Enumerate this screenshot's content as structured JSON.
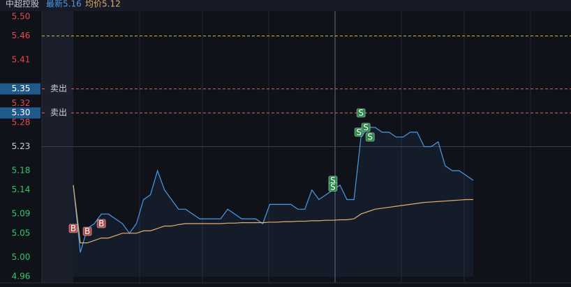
{
  "chart_data": {
    "type": "line",
    "header": {
      "name": "中超控股",
      "latest": "最新5.16",
      "average": "均价5.12"
    },
    "ylim": [
      4.96,
      5.5
    ],
    "yticks": [
      {
        "value": 5.5,
        "label": "5.50"
      },
      5.46,
      5.41,
      {
        "value": 5.35,
        "label": "5.35"
      },
      {
        "value": 5.32,
        "label": "5.32"
      },
      {
        "value": 5.3,
        "label": "5.30"
      },
      5.28,
      5.23,
      5.18,
      5.14,
      5.09,
      5.05,
      {
        "value": 5.0,
        "label": "5.00"
      },
      4.96
    ],
    "prev_close": 5.23,
    "limit_line": {
      "value": 5.46,
      "color": "#d8c020"
    },
    "order_lines": [
      {
        "value": 5.35,
        "label": "卖出",
        "color": "#e06060"
      },
      {
        "value": 5.3,
        "label": "卖出",
        "color": "#e06060"
      }
    ],
    "series": [
      {
        "name": "price",
        "color": "#4a9be8",
        "values": [
          5.15,
          5.01,
          5.06,
          5.07,
          5.09,
          5.09,
          5.08,
          5.07,
          5.05,
          5.07,
          5.12,
          5.13,
          5.18,
          5.14,
          5.12,
          5.1,
          5.1,
          5.09,
          5.08,
          5.08,
          5.08,
          5.08,
          5.1,
          5.09,
          5.08,
          5.08,
          5.08,
          5.07,
          5.11,
          5.11,
          5.11,
          5.11,
          5.1,
          5.1,
          5.14,
          5.12,
          5.13,
          5.14,
          5.15,
          5.12,
          5.12,
          5.25,
          5.27,
          5.27,
          5.26,
          5.26,
          5.25,
          5.25,
          5.26,
          5.26,
          5.23,
          5.23,
          5.24,
          5.19,
          5.18,
          5.18,
          5.17,
          5.16
        ]
      },
      {
        "name": "average",
        "color": "#e0b070",
        "values": [
          5.15,
          5.03,
          5.03,
          5.035,
          5.04,
          5.04,
          5.045,
          5.05,
          5.05,
          5.05,
          5.055,
          5.055,
          5.06,
          5.065,
          5.065,
          5.068,
          5.07,
          5.07,
          5.07,
          5.07,
          5.07,
          5.07,
          5.071,
          5.071,
          5.072,
          5.072,
          5.072,
          5.072,
          5.073,
          5.073,
          5.074,
          5.074,
          5.075,
          5.075,
          5.076,
          5.076,
          5.077,
          5.077,
          5.078,
          5.078,
          5.08,
          5.09,
          5.095,
          5.1,
          5.102,
          5.104,
          5.106,
          5.108,
          5.11,
          5.112,
          5.114,
          5.115,
          5.116,
          5.117,
          5.118,
          5.119,
          5.12,
          5.12
        ]
      }
    ],
    "markers": [
      {
        "text": "B",
        "at": 0,
        "value": 5.06,
        "color": "#b04848"
      },
      {
        "text": "B",
        "at": 2,
        "value": 5.054,
        "color": "#b04848"
      },
      {
        "text": "B",
        "at": 4,
        "value": 5.07,
        "color": "#b04848"
      },
      {
        "text": "S",
        "at": 37,
        "value": 5.16,
        "color": "#2a8a4a"
      },
      {
        "text": "S",
        "at": 37,
        "value": 5.146,
        "color": "#2a8a4a"
      },
      {
        "text": "S",
        "at": 41,
        "value": 5.3,
        "color": "#2a8a4a"
      },
      {
        "text": "S",
        "at": 40.7,
        "value": 5.26,
        "color": "#2a8a4a"
      },
      {
        "text": "S",
        "at": 41.7,
        "value": 5.27,
        "color": "#2a8a4a"
      },
      {
        "text": "S",
        "at": 42.3,
        "value": 5.25,
        "color": "#2a8a4a"
      }
    ]
  }
}
